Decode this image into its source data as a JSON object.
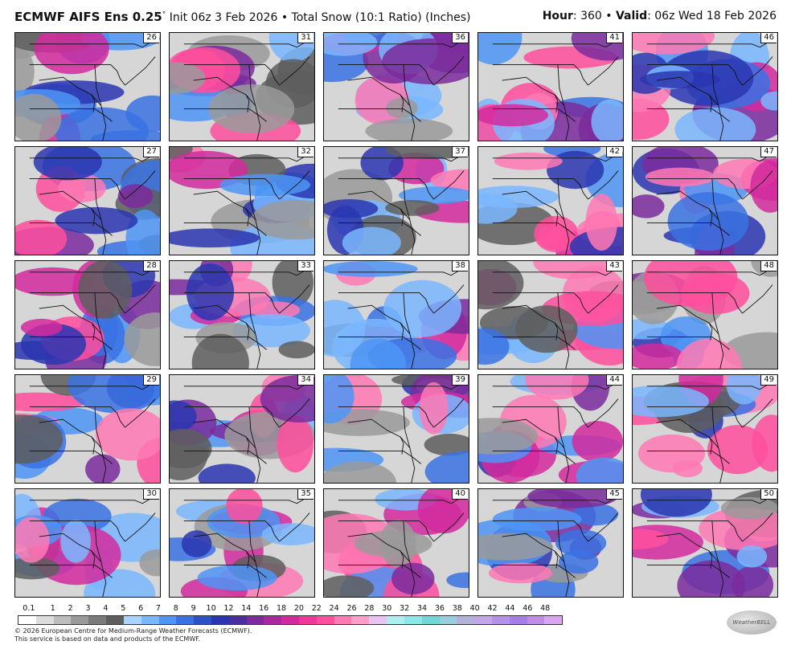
{
  "header": {
    "model": "ECMWF AIFS Ens 0.25",
    "degree": "°",
    "init": " Init 06z 3 Feb 2026 • Total Snow (10:1 Ratio) (Inches)",
    "hour_label": "Hour",
    "hour_value": ": 360 • ",
    "valid_label": "Valid",
    "valid_value": ": 06z Wed 18 Feb 2026"
  },
  "members": [
    [
      "26",
      "31",
      "36",
      "41",
      "46"
    ],
    [
      "27",
      "32",
      "37",
      "42",
      "47"
    ],
    [
      "28",
      "33",
      "38",
      "43",
      "48"
    ],
    [
      "29",
      "34",
      "39",
      "44",
      "49"
    ],
    [
      "30",
      "35",
      "40",
      "45",
      "50"
    ]
  ],
  "legend": {
    "labels": [
      "0.1",
      "1",
      "2",
      "3",
      "4",
      "5",
      "6",
      "7",
      "8",
      "9",
      "10",
      "12",
      "14",
      "16",
      "18",
      "20",
      "22",
      "24",
      "26",
      "28",
      "30",
      "32",
      "34",
      "36",
      "38",
      "40",
      "42",
      "44",
      "46",
      "48"
    ],
    "colors": [
      "#ffffff",
      "#dcdcdc",
      "#bdbdbd",
      "#9a9a9a",
      "#7a7a7a",
      "#5e5e5e",
      "#a8d4ff",
      "#7ab7ff",
      "#4e95f5",
      "#3a72e3",
      "#2d52c8",
      "#2a36b0",
      "#4a2ea0",
      "#7b2b9c",
      "#a8299e",
      "#d22a9e",
      "#f0389a",
      "#ff4f9e",
      "#ff79b4",
      "#ff9ec8",
      "#e9c4f2",
      "#aef0f2",
      "#8de9e9",
      "#73d6d6",
      "#9bcfe0",
      "#b3b3d9",
      "#c3a6e8",
      "#b691e8",
      "#a77ee6",
      "#c18de9",
      "#d9a4f0"
    ]
  },
  "copyright": [
    "© 2026 European Centre for Medium-Range Weather Forecasts (ECMWF).",
    "This service is based on data and products of the ECMWF."
  ],
  "logo_text": "WeatherBELL"
}
